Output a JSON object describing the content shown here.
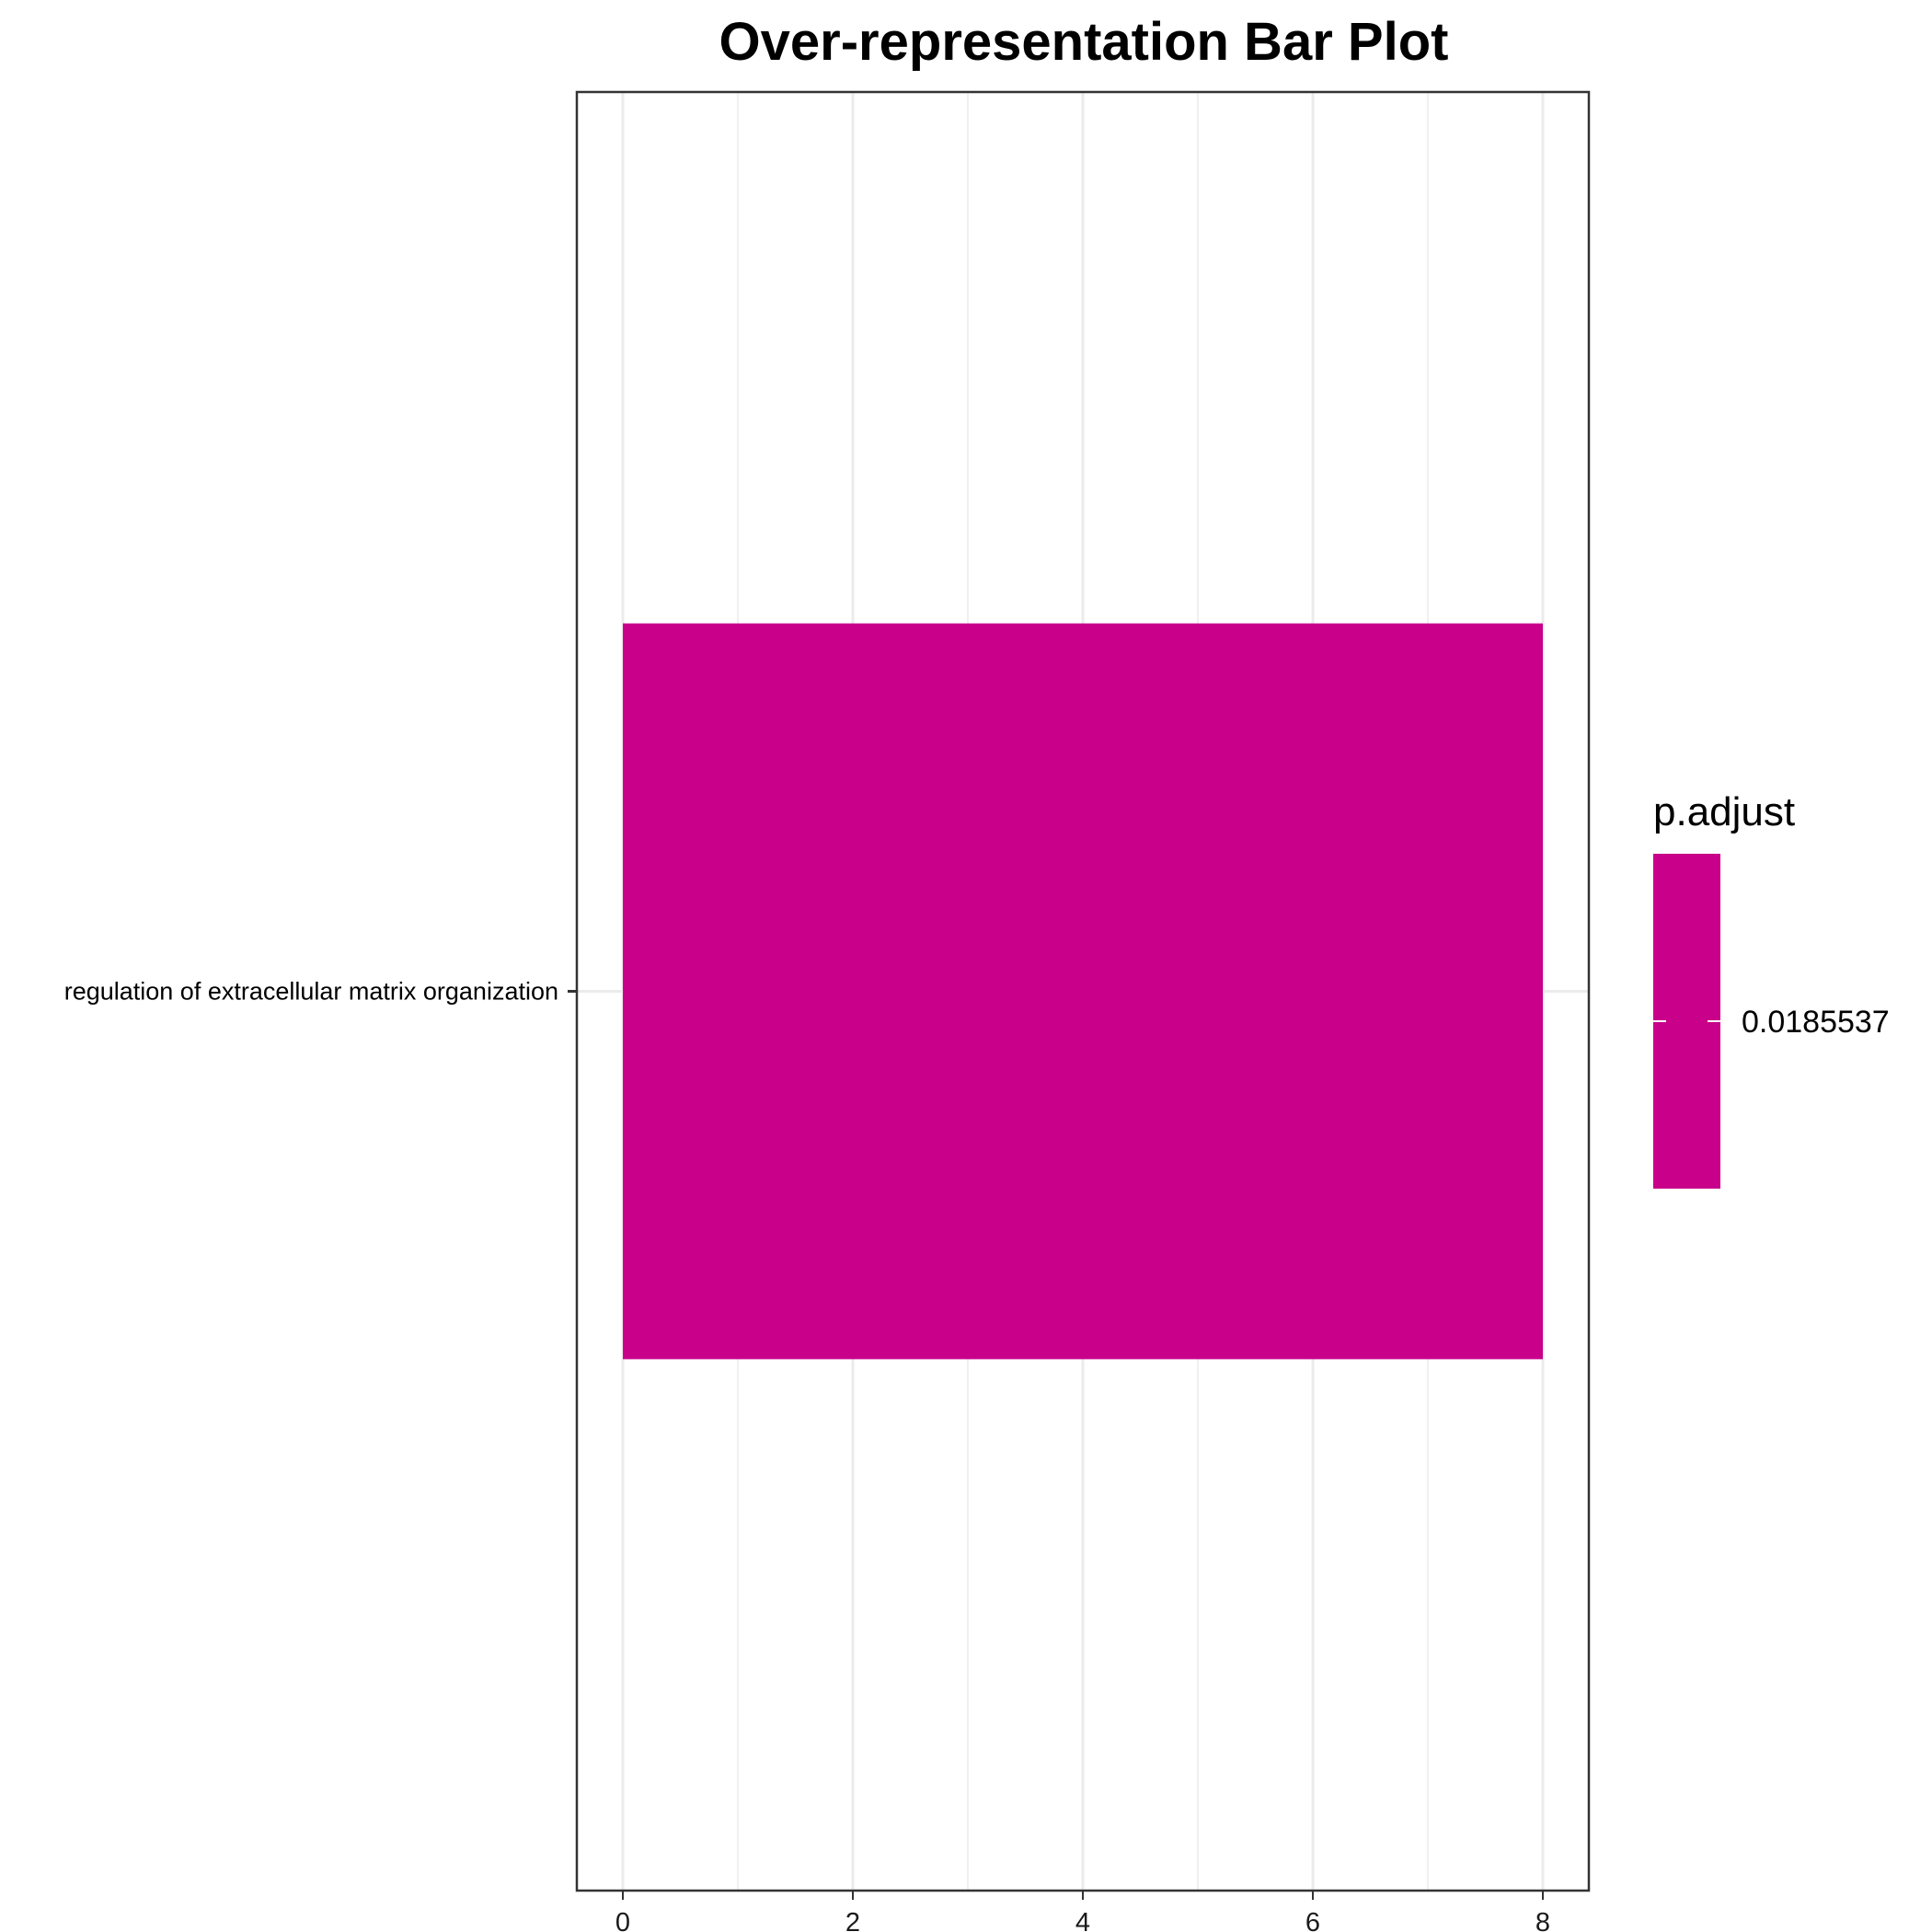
{
  "chart_data": {
    "type": "bar",
    "orientation": "horizontal",
    "title": "Over-representation Bar Plot",
    "xlabel": "",
    "ylabel": "",
    "categories": [
      "regulation of extracellular matrix organization"
    ],
    "values": [
      8
    ],
    "xlim": [
      -0.4,
      8.4
    ],
    "x_ticks": [
      "0",
      "2",
      "4",
      "6",
      "8"
    ],
    "grid": true,
    "bar_color": "#C8008A",
    "legend": {
      "title": "p.adjust",
      "position": "right",
      "color": "#C8008A",
      "labels": [
        "0.0185537"
      ]
    }
  }
}
